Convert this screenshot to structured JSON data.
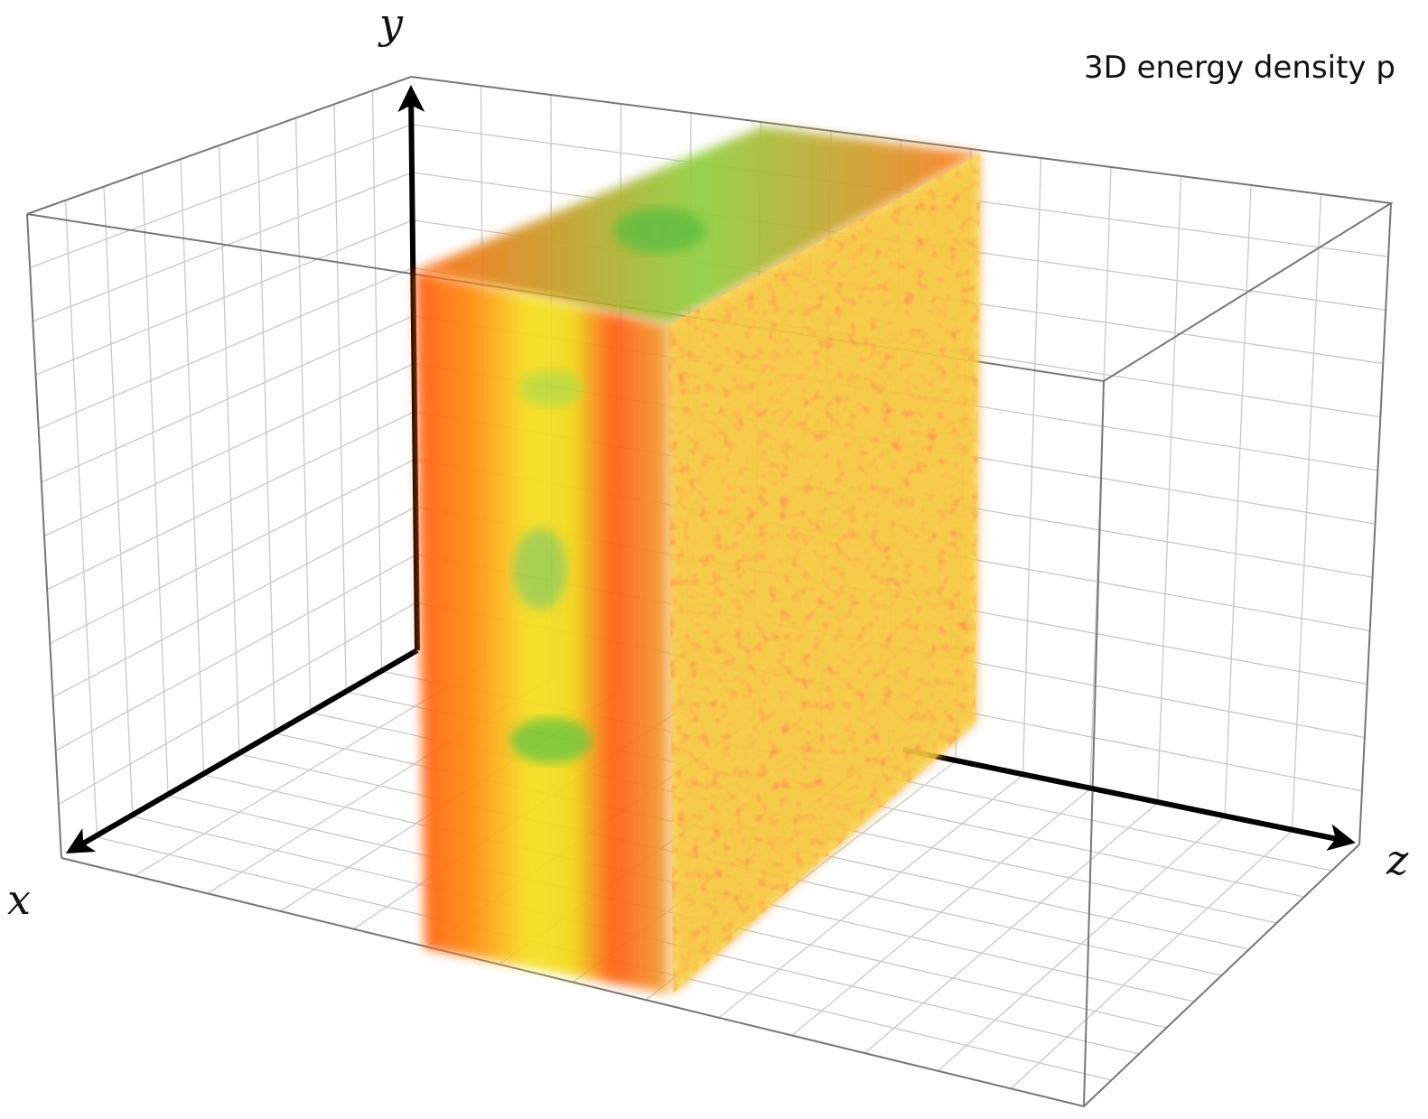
{
  "axes": {
    "x": "x",
    "y": "y",
    "z": "z"
  },
  "caption": "3D energy density p"
}
